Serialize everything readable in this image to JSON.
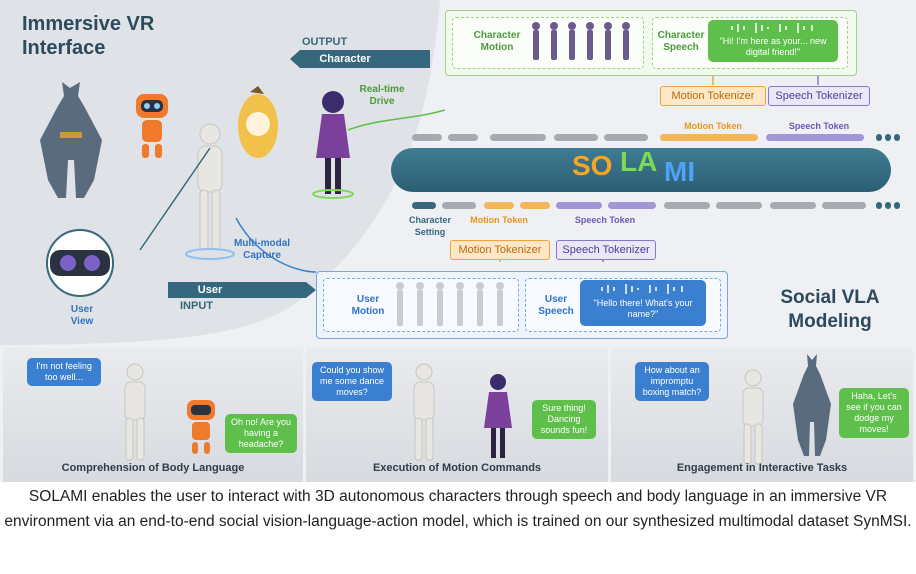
{
  "titles": {
    "immersive_vr_line1": "Immersive VR",
    "immersive_vr_line2": "Interface",
    "social_vla_line1": "Social VLA",
    "social_vla_line2": "Modeling"
  },
  "output": {
    "tag_word": "OUTPUT",
    "tag_label": "Character",
    "character_motion_line1": "Character",
    "character_motion_line2": "Motion",
    "character_speech_line1": "Character",
    "character_speech_line2": "Speech",
    "speech_bubble": "\"Hi! I'm here as your... new digital friend!\"",
    "realtime_line1": "Real-time",
    "realtime_line2": "Drive"
  },
  "input": {
    "tag_label": "User",
    "tag_word": "INPUT",
    "user_motion_line1": "User",
    "user_motion_line2": "Motion",
    "user_speech_line1": "User",
    "user_speech_line2": "Speech",
    "speech_bubble": "\"Hello there! What's your name?\"",
    "multimodal_line1": "Multi-modal",
    "multimodal_line2": "Capture",
    "user_view_line1": "User",
    "user_view_line2": "View"
  },
  "tokenizers": {
    "motion_out": "Motion Tokenizer",
    "speech_out": "Speech Tokenizer",
    "motion_in": "Motion Tokenizer",
    "speech_in": "Speech Tokenizer"
  },
  "tokens": {
    "motion_token_out": "Motion Token",
    "speech_token_out": "Speech Token",
    "character_setting_line1": "Character",
    "character_setting_line2": "Setting",
    "motion_token_in": "Motion Token",
    "speech_token_in": "Speech Token"
  },
  "logo": {
    "so": "SO",
    "la": "LA",
    "mi": "MI"
  },
  "scenes": [
    {
      "title": "Comprehension of Body Language",
      "user_bubble": "I'm not feeling too well...",
      "char_bubble": "Oh no! Are you having a headache?"
    },
    {
      "title": "Execution of Motion Commands",
      "user_bubble": "Could you show me some dance moves?",
      "char_bubble": "Sure thing! Dancing sounds fun!"
    },
    {
      "title": "Engagement in Interactive Tasks",
      "user_bubble": "How about an impromptu boxing match?",
      "char_bubble": "Haha, Let's see if you can dodge my moves!"
    }
  ],
  "caption": "SOLAMI enables the user to interact with 3D autonomous characters through speech and body language in an immersive VR environment via an end-to-end social vision-language-action model, which is trained on our synthesized multimodal dataset SynMSI.",
  "colors": {
    "accent_teal": "#35687d",
    "motion_orange": "#f1a33c",
    "speech_purple": "#8578c9",
    "output_green": "#9fcf8a",
    "input_blue": "#7ea6dc",
    "logo_orange": "#f5a623",
    "logo_green": "#7ed957",
    "logo_blue": "#4fa3f7"
  }
}
